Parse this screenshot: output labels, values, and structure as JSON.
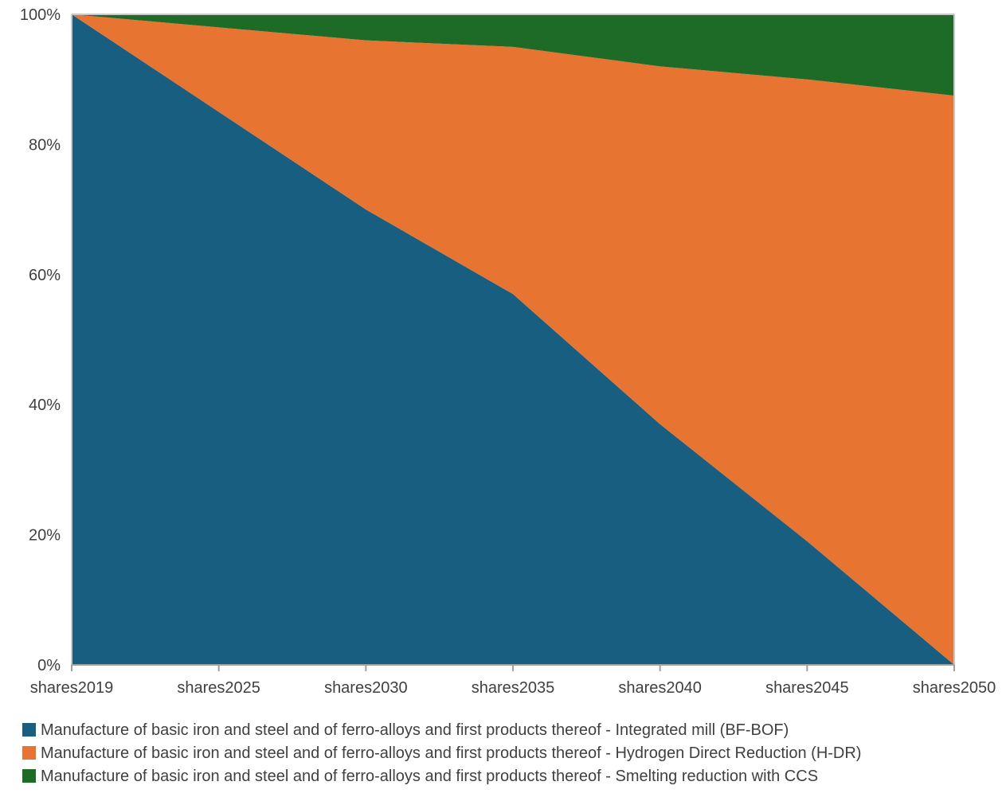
{
  "chart_data": {
    "type": "area",
    "stacked": true,
    "stacked_percent": true,
    "categories": [
      "shares2019",
      "shares2025",
      "shares2030",
      "shares2035",
      "shares2040",
      "shares2045",
      "shares2050"
    ],
    "series": [
      {
        "name": "Manufacture of basic iron and steel and of ferro-alloys and first products thereof - Integrated mill (BF-BOF)",
        "color": "#175E80",
        "values": [
          100,
          85,
          70,
          57,
          37,
          19,
          0
        ]
      },
      {
        "name": "Manufacture of basic iron and steel and of ferro-alloys and first products thereof - Hydrogen Direct Reduction (H-DR)",
        "color": "#E87432",
        "values": [
          0,
          13,
          26,
          38,
          55,
          71,
          87.5
        ]
      },
      {
        "name": "Manufacture of basic iron and steel and of ferro-alloys and first products thereof - Smelting reduction with CCS",
        "color": "#1D6B27",
        "values": [
          0,
          2,
          4,
          5,
          8,
          10,
          12.5
        ]
      }
    ],
    "ylim": [
      0,
      100
    ],
    "y_ticks": [
      "0%",
      "20%",
      "40%",
      "60%",
      "80%",
      "100%"
    ],
    "y_tick_values": [
      0,
      20,
      40,
      60,
      80,
      100
    ],
    "title": "",
    "xlabel": "",
    "ylabel": "",
    "grid": false,
    "legend_position": "bottom"
  }
}
